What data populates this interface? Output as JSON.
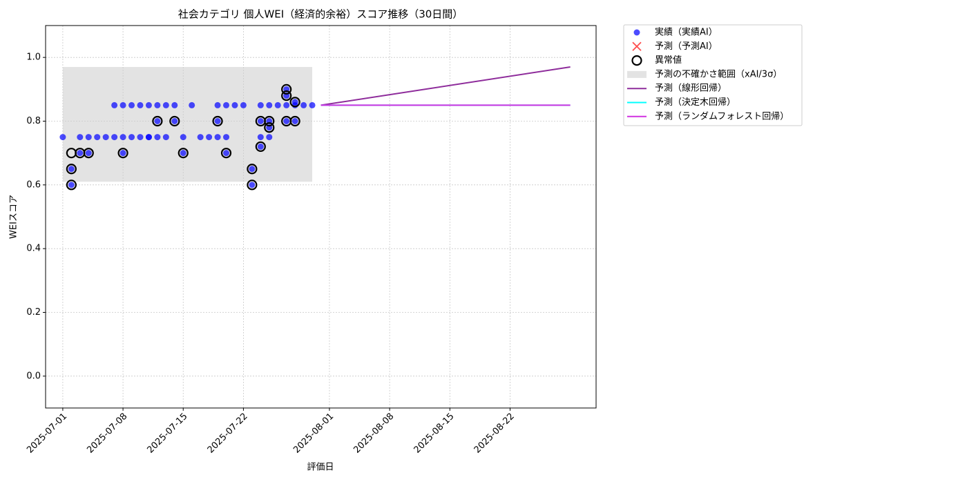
{
  "chart_data": {
    "type": "scatter",
    "title": "社会カテゴリ 個人WEI（経済的余裕）スコア推移（30日間）",
    "x_label": "評価日",
    "y_label": "WEIスコア",
    "xlim": [
      "2025-06-29",
      "2025-09-01"
    ],
    "xticks": [
      "2025-07-01",
      "2025-07-08",
      "2025-07-15",
      "2025-07-22",
      "2025-08-01",
      "2025-08-08",
      "2025-08-15",
      "2025-08-22"
    ],
    "ylim": [
      -0.1,
      1.1
    ],
    "yticks": [
      {
        "value": 0,
        "label": "0.0"
      },
      0.2,
      0.4,
      0.6,
      0.8,
      {
        "value": 1,
        "label": "1.0"
      }
    ],
    "grid": true,
    "legend": "outside-upper-right",
    "series": [
      {
        "name": "実績（実績AI）",
        "type": "scatter",
        "marker": "dot",
        "color": "#0000ff",
        "x": [
          "2025-07-01",
          "2025-07-02",
          "2025-07-02",
          "2025-07-03",
          "2025-07-03",
          "2025-07-04",
          "2025-07-04",
          "2025-07-05",
          "2025-07-06",
          "2025-07-07",
          "2025-07-07",
          "2025-07-08",
          "2025-07-08",
          "2025-07-08",
          "2025-07-09",
          "2025-07-09",
          "2025-07-10",
          "2025-07-10",
          "2025-07-11",
          "2025-07-11",
          "2025-07-11",
          "2025-07-12",
          "2025-07-12",
          "2025-07-12",
          "2025-07-13",
          "2025-07-13",
          "2025-07-14",
          "2025-07-14",
          "2025-07-15",
          "2025-07-15",
          "2025-07-16",
          "2025-07-17",
          "2025-07-18",
          "2025-07-19",
          "2025-07-19",
          "2025-07-19",
          "2025-07-20",
          "2025-07-20",
          "2025-07-20",
          "2025-07-21",
          "2025-07-22",
          "2025-07-23",
          "2025-07-23",
          "2025-07-24",
          "2025-07-24",
          "2025-07-24",
          "2025-07-24",
          "2025-07-25",
          "2025-07-25",
          "2025-07-25",
          "2025-07-25",
          "2025-07-26",
          "2025-07-27",
          "2025-07-27",
          "2025-07-27",
          "2025-07-27",
          "2025-07-28",
          "2025-07-28",
          "2025-07-28",
          "2025-07-29",
          "2025-07-30"
        ],
        "values": [
          0.75,
          0.6,
          0.65,
          0.7,
          0.75,
          0.7,
          0.75,
          0.75,
          0.75,
          0.85,
          0.75,
          0.85,
          0.75,
          0.7,
          0.85,
          0.75,
          0.85,
          0.75,
          0.85,
          0.75,
          0.75,
          0.8,
          0.85,
          0.75,
          0.85,
          0.75,
          0.85,
          0.8,
          0.75,
          0.7,
          0.85,
          0.75,
          0.75,
          0.85,
          0.75,
          0.8,
          0.85,
          0.7,
          0.75,
          0.85,
          0.85,
          0.65,
          0.6,
          0.85,
          0.8,
          0.75,
          0.72,
          0.85,
          0.8,
          0.78,
          0.75,
          0.85,
          0.9,
          0.88,
          0.85,
          0.8,
          0.8,
          0.86,
          0.85,
          0.85,
          0.85
        ]
      },
      {
        "name": "予測（予測AI）",
        "type": "scatter",
        "marker": "x",
        "color": "#ff0000",
        "x": [],
        "values": []
      },
      {
        "name": "異常値",
        "type": "scatter",
        "marker": "ring",
        "color": "#000000",
        "x": [
          "2025-07-02",
          "2025-07-02",
          "2025-07-02",
          "2025-07-03",
          "2025-07-04",
          "2025-07-08",
          "2025-07-12",
          "2025-07-14",
          "2025-07-15",
          "2025-07-19",
          "2025-07-20",
          "2025-07-23",
          "2025-07-23",
          "2025-07-24",
          "2025-07-24",
          "2025-07-25",
          "2025-07-25",
          "2025-07-27",
          "2025-07-27",
          "2025-07-27",
          "2025-07-28",
          "2025-07-28"
        ],
        "values": [
          0.6,
          0.65,
          0.7,
          0.7,
          0.7,
          0.7,
          0.8,
          0.8,
          0.7,
          0.8,
          0.7,
          0.65,
          0.6,
          0.8,
          0.72,
          0.8,
          0.78,
          0.9,
          0.88,
          0.8,
          0.8,
          0.86
        ]
      },
      {
        "name": "予測の不確かさ範囲（xAI/3σ）",
        "type": "band",
        "color": "#cccccc",
        "x": [
          "2025-07-01",
          "2025-07-30"
        ],
        "lower": [
          0.61,
          0.61
        ],
        "upper": [
          0.97,
          0.97
        ]
      },
      {
        "name": "予測（線形回帰）",
        "type": "line",
        "color": "#8e2c9b",
        "x": [
          "2025-07-31",
          "2025-08-29"
        ],
        "values": [
          0.85,
          0.97
        ]
      },
      {
        "name": "予測（決定木回帰）",
        "type": "line",
        "color": "#00ffff",
        "x": [
          "2025-07-31",
          "2025-08-29"
        ],
        "values": [
          0.85,
          0.85
        ]
      },
      {
        "name": "予測（ランダムフォレスト回帰）",
        "type": "line",
        "color": "#d030e0",
        "x": [
          "2025-07-31",
          "2025-08-29"
        ],
        "values": [
          0.85,
          0.85
        ]
      }
    ]
  }
}
